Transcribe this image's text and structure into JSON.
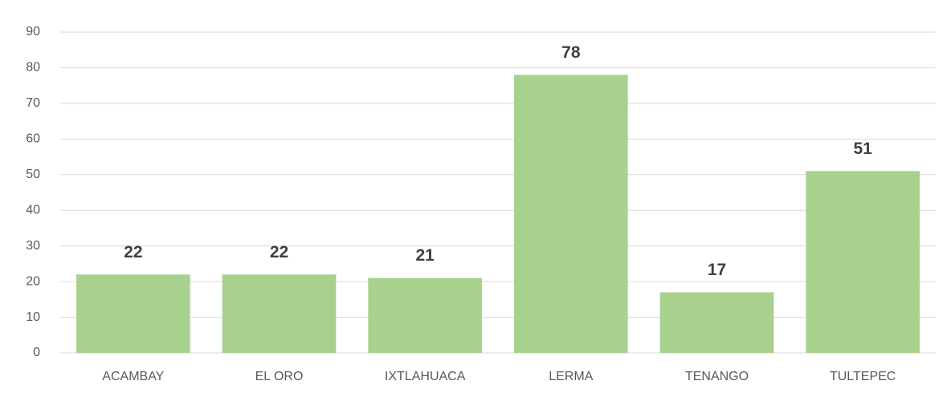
{
  "chart_data": {
    "type": "bar",
    "categories": [
      "ACAMBAY",
      "EL ORO",
      "IXTLAHUACA",
      "LERMA",
      "TENANGO",
      "TULTEPEC"
    ],
    "values": [
      22,
      22,
      21,
      78,
      17,
      51
    ],
    "color": "#a9d18e",
    "ylim": [
      0,
      90
    ],
    "yticks": [
      0,
      10,
      20,
      30,
      40,
      50,
      60,
      70,
      80,
      90
    ],
    "grid": true
  }
}
